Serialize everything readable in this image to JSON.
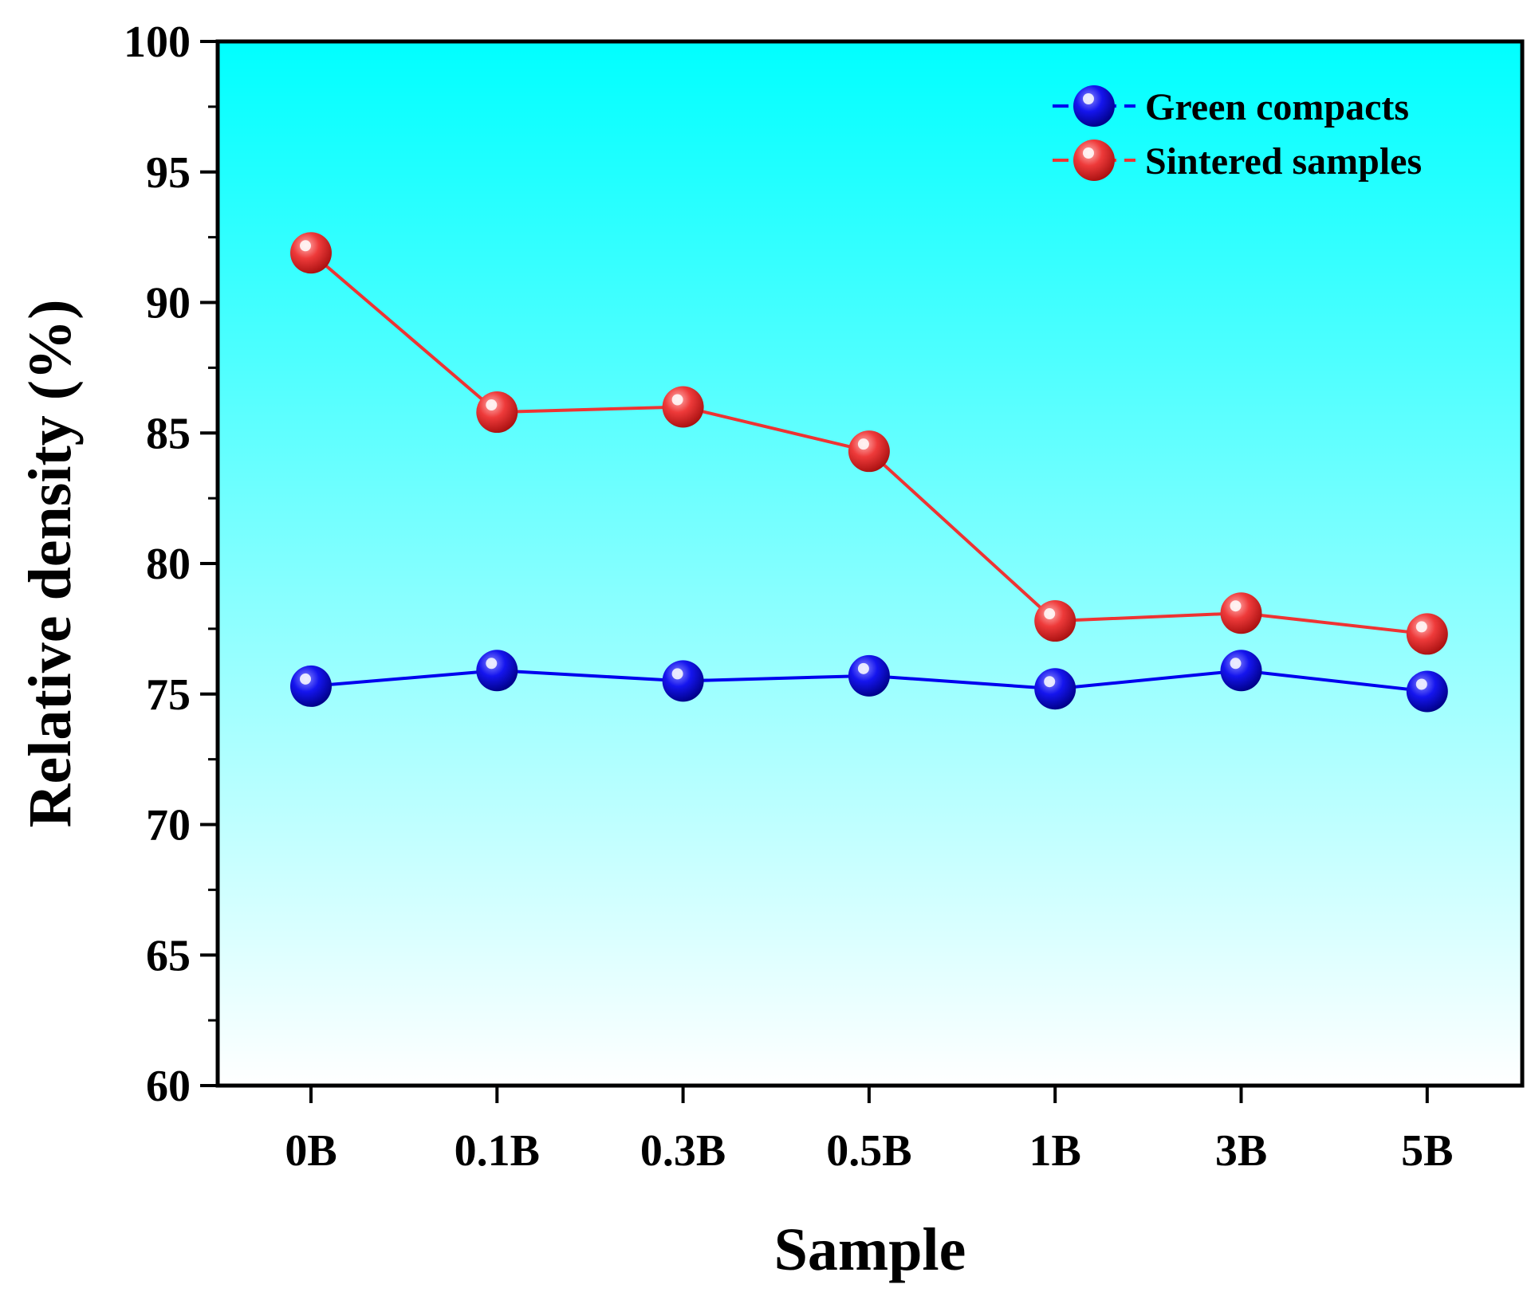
{
  "chart_data": {
    "type": "line",
    "categories": [
      "0B",
      "0.1B",
      "0.3B",
      "0.5B",
      "1B",
      "3B",
      "5B"
    ],
    "series": [
      {
        "name": "Green compacts",
        "color": "#0000ee",
        "values": [
          75.3,
          75.9,
          75.5,
          75.7,
          75.2,
          75.9,
          75.1
        ]
      },
      {
        "name": "Sintered samples",
        "color": "#ee3333",
        "values": [
          91.9,
          85.8,
          86.0,
          84.3,
          77.8,
          78.1,
          77.3
        ]
      }
    ],
    "xlabel": "Sample",
    "ylabel": "Relative density (%)",
    "ylim": [
      60,
      100
    ],
    "yticks": [
      60,
      65,
      70,
      75,
      80,
      85,
      90,
      95,
      100
    ],
    "background_gradient": [
      "#00ffff",
      "#ffffff"
    ],
    "legend_position": "top-right",
    "grid": false
  }
}
